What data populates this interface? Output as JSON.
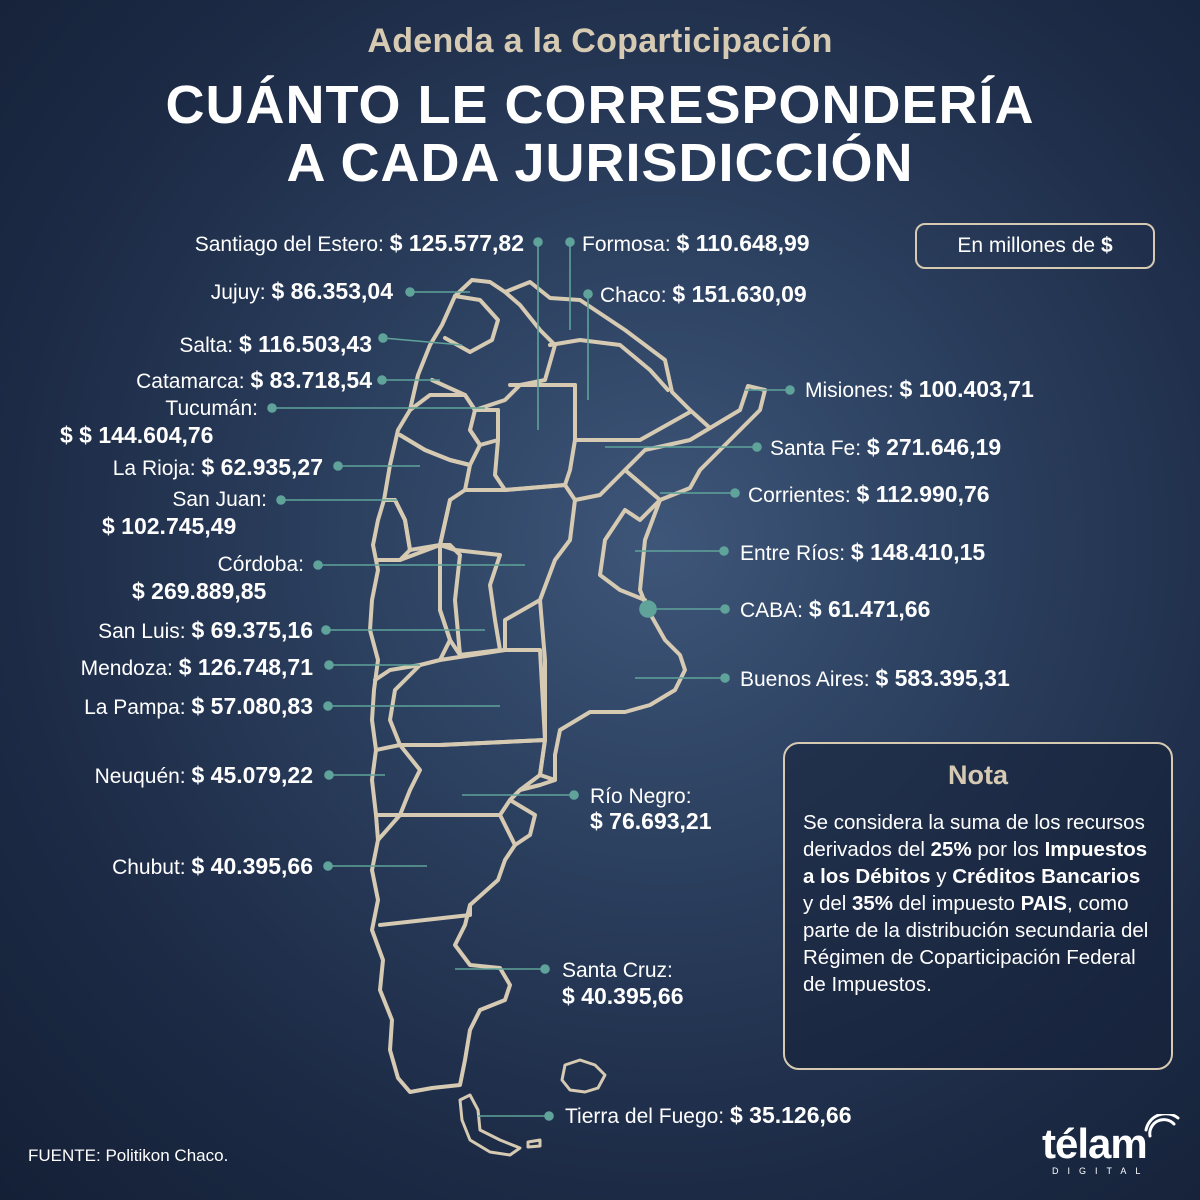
{
  "header": {
    "subtitle": "Adenda a la Coparticipación",
    "title_line1": "CUÁNTO LE CORRESPONDERÍA",
    "title_line2": "A CADA JURISDICCIÓN"
  },
  "units": {
    "prefix": "En millones de",
    "symbol": "$"
  },
  "jurisdictions": [
    {
      "name": "Santiago del Estero:",
      "value": "$ 125.577,82"
    },
    {
      "name": "Formosa:",
      "value": "$ 110.648,99"
    },
    {
      "name": "Jujuy:",
      "value": "$ 86.353,04"
    },
    {
      "name": "Chaco:",
      "value": "$ 151.630,09"
    },
    {
      "name": "Salta:",
      "value": "$ 116.503,43"
    },
    {
      "name": "Catamarca:",
      "value": "$ 83.718,54"
    },
    {
      "name": "Misiones:",
      "value": "$ 100.403,71"
    },
    {
      "name": "Tucumán:",
      "value": "$ $ 144.604,76"
    },
    {
      "name": "Santa Fe:",
      "value": "$ 271.646,19"
    },
    {
      "name": "La Rioja:",
      "value": "$ 62.935,27"
    },
    {
      "name": "Corrientes:",
      "value": "$ 112.990,76"
    },
    {
      "name": "San Juan:",
      "value": "$ 102.745,49"
    },
    {
      "name": "Entre Ríos:",
      "value": "$ 148.410,15"
    },
    {
      "name": "Córdoba:",
      "value": "$ 269.889,85"
    },
    {
      "name": "CABA:",
      "value": "$ 61.471,66"
    },
    {
      "name": "San Luis:",
      "value": "$ 69.375,16"
    },
    {
      "name": "Mendoza:",
      "value": "$ 126.748,71"
    },
    {
      "name": "Buenos Aires:",
      "value": "$ 583.395,31"
    },
    {
      "name": "La Pampa:",
      "value": "$ 57.080,83"
    },
    {
      "name": "Neuquén:",
      "value": "$ 45.079,22"
    },
    {
      "name": "Río Negro:",
      "value": "$ 76.693,21"
    },
    {
      "name": "Chubut:",
      "value": "$ 40.395,66"
    },
    {
      "name": "Santa Cruz:",
      "value": "$ 40.395,66"
    },
    {
      "name": "Tierra del Fuego:",
      "value": "$ 35.126,66"
    }
  ],
  "note": {
    "title": "Nota",
    "t1": "Se considera la suma de los recursos derivados del ",
    "b1": "25%",
    "t2": " por los ",
    "b2": "Impuestos a los Débitos",
    "t3": " y ",
    "b3": "Créditos Bancarios",
    "t4": " y del ",
    "b4": "35%",
    "t5": " del impuesto ",
    "b5": "PAIS",
    "t6": ", como parte de la distribución secundaria del Régimen de Coparticipación Federal de Impuestos."
  },
  "source": "FUENTE: Politikon Chaco.",
  "logo": {
    "word": "télam",
    "sub": "DIGITAL"
  },
  "colors": {
    "accent": "#d6cab3",
    "connector": "#5fa39a",
    "background": "#2b3f5e"
  }
}
